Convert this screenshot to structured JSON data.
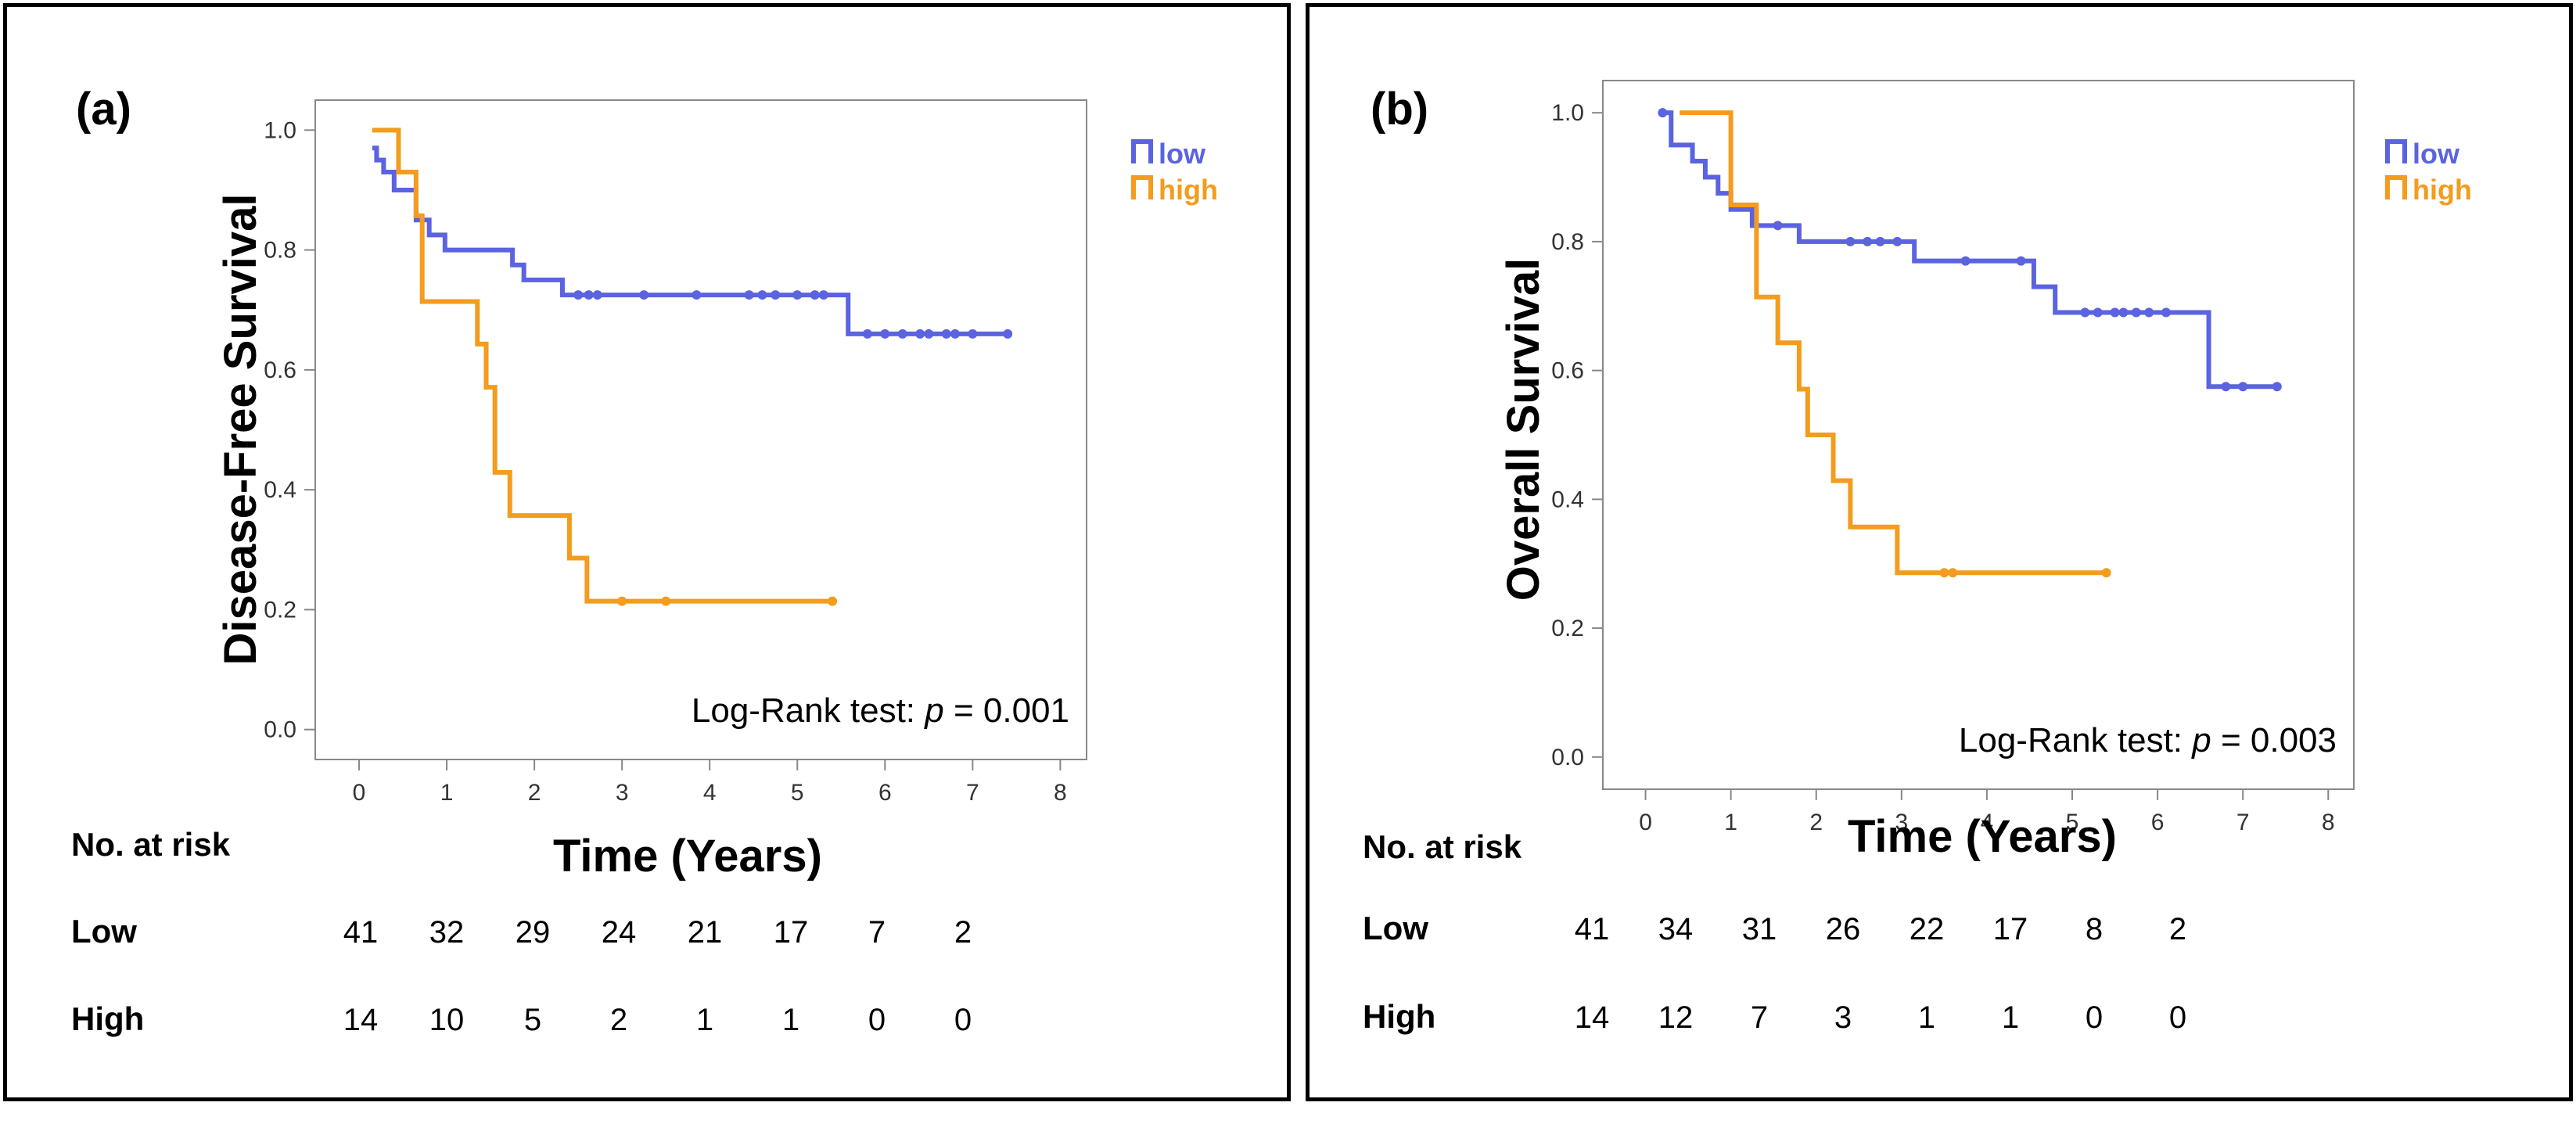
{
  "colors": {
    "low": "#5b63e0",
    "high": "#f39c1e",
    "frame": "#888888"
  },
  "chart_data": [
    {
      "type": "line",
      "subtype": "kaplan-meier",
      "panel_label": "(a)",
      "ylabel": "Disease-Free Survival",
      "xlabel": "Time (Years)",
      "xlim": [
        -0.5,
        8.3
      ],
      "ylim": [
        -0.05,
        1.05
      ],
      "x_ticks": [
        "0",
        "1",
        "2",
        "3",
        "4",
        "5",
        "6",
        "7",
        "8"
      ],
      "y_ticks": [
        "0.0",
        "0.2",
        "0.4",
        "0.6",
        "0.8",
        "1.0"
      ],
      "annotation": {
        "prefix": "Log-Rank test: ",
        "p": "p",
        "suffix": " = 0.001"
      },
      "legend": [
        "low",
        "high"
      ],
      "series": [
        {
          "name": "low",
          "steps": [
            [
              0.15,
              0.97
            ],
            [
              0.2,
              0.95
            ],
            [
              0.28,
              0.93
            ],
            [
              0.4,
              0.9
            ],
            [
              0.65,
              0.85
            ],
            [
              0.8,
              0.825
            ],
            [
              0.98,
              0.8
            ],
            [
              1.75,
              0.775
            ],
            [
              1.88,
              0.75
            ],
            [
              2.32,
              0.725
            ],
            [
              5.58,
              0.66
            ],
            [
              7.4,
              0.66
            ]
          ],
          "censors": [
            [
              2.5,
              0.725
            ],
            [
              2.62,
              0.725
            ],
            [
              2.72,
              0.725
            ],
            [
              3.25,
              0.725
            ],
            [
              3.85,
              0.725
            ],
            [
              4.45,
              0.725
            ],
            [
              4.6,
              0.725
            ],
            [
              4.75,
              0.725
            ],
            [
              5.0,
              0.725
            ],
            [
              5.2,
              0.725
            ],
            [
              5.3,
              0.725
            ],
            [
              5.8,
              0.66
            ],
            [
              6.0,
              0.66
            ],
            [
              6.2,
              0.66
            ],
            [
              6.4,
              0.66
            ],
            [
              6.5,
              0.66
            ],
            [
              6.7,
              0.66
            ],
            [
              6.8,
              0.66
            ],
            [
              7.0,
              0.66
            ],
            [
              7.4,
              0.66
            ]
          ]
        },
        {
          "name": "high",
          "steps": [
            [
              0.15,
              1.0
            ],
            [
              0.45,
              0.93
            ],
            [
              0.65,
              0.857
            ],
            [
              0.72,
              0.714
            ],
            [
              1.35,
              0.643
            ],
            [
              1.45,
              0.571
            ],
            [
              1.55,
              0.429
            ],
            [
              1.72,
              0.357
            ],
            [
              2.4,
              0.286
            ],
            [
              2.6,
              0.214
            ],
            [
              5.4,
              0.214
            ]
          ],
          "censors": [
            [
              3.0,
              0.214
            ],
            [
              3.5,
              0.214
            ],
            [
              5.4,
              0.214
            ]
          ]
        }
      ],
      "at_risk": {
        "title": "No. at risk",
        "rows": [
          {
            "label": "Low",
            "values": [
              "41",
              "32",
              "29",
              "24",
              "21",
              "17",
              "7",
              "2"
            ]
          },
          {
            "label": "High",
            "values": [
              "14",
              "10",
              "5",
              "2",
              "1",
              "1",
              "0",
              "0"
            ]
          }
        ]
      }
    },
    {
      "type": "line",
      "subtype": "kaplan-meier",
      "panel_label": "(b)",
      "ylabel": "Overall Survival",
      "xlabel": "Time (Years)",
      "xlim": [
        -0.5,
        8.3
      ],
      "ylim": [
        -0.05,
        1.05
      ],
      "x_ticks": [
        "0",
        "1",
        "2",
        "3",
        "4",
        "5",
        "6",
        "7",
        "8"
      ],
      "y_ticks": [
        "0.0",
        "0.2",
        "0.4",
        "0.6",
        "0.8",
        "1.0"
      ],
      "annotation": {
        "prefix": "Log-Rank test: ",
        "p": "p",
        "suffix": " = 0.003"
      },
      "legend": [
        "low",
        "high"
      ],
      "series": [
        {
          "name": "low",
          "steps": [
            [
              0.2,
              1.0
            ],
            [
              0.3,
              0.95
            ],
            [
              0.55,
              0.925
            ],
            [
              0.7,
              0.9
            ],
            [
              0.85,
              0.875
            ],
            [
              1.0,
              0.85
            ],
            [
              1.25,
              0.825
            ],
            [
              1.8,
              0.8
            ],
            [
              3.15,
              0.77
            ],
            [
              4.55,
              0.73
            ],
            [
              4.8,
              0.69
            ],
            [
              6.6,
              0.575
            ],
            [
              7.4,
              0.575
            ]
          ],
          "censors": [
            [
              0.2,
              1.0
            ],
            [
              1.55,
              0.825
            ],
            [
              2.4,
              0.8
            ],
            [
              2.6,
              0.8
            ],
            [
              2.75,
              0.8
            ],
            [
              2.95,
              0.8
            ],
            [
              3.75,
              0.77
            ],
            [
              4.4,
              0.77
            ],
            [
              5.15,
              0.69
            ],
            [
              5.3,
              0.69
            ],
            [
              5.5,
              0.69
            ],
            [
              5.6,
              0.69
            ],
            [
              5.75,
              0.69
            ],
            [
              5.9,
              0.69
            ],
            [
              6.1,
              0.69
            ],
            [
              6.8,
              0.575
            ],
            [
              7.0,
              0.575
            ],
            [
              7.4,
              0.575
            ]
          ]
        },
        {
          "name": "high",
          "steps": [
            [
              0.4,
              1.0
            ],
            [
              1.0,
              0.857
            ],
            [
              1.3,
              0.714
            ],
            [
              1.55,
              0.643
            ],
            [
              1.8,
              0.571
            ],
            [
              1.9,
              0.5
            ],
            [
              2.2,
              0.429
            ],
            [
              2.4,
              0.357
            ],
            [
              2.95,
              0.286
            ],
            [
              5.4,
              0.286
            ]
          ],
          "censors": [
            [
              3.5,
              0.286
            ],
            [
              3.6,
              0.286
            ],
            [
              5.4,
              0.286
            ]
          ]
        }
      ],
      "at_risk": {
        "title": "No. at risk",
        "rows": [
          {
            "label": "Low",
            "values": [
              "41",
              "34",
              "31",
              "26",
              "22",
              "17",
              "8",
              "2"
            ]
          },
          {
            "label": "High",
            "values": [
              "14",
              "12",
              "7",
              "3",
              "1",
              "1",
              "0",
              "0"
            ]
          }
        ]
      }
    }
  ]
}
